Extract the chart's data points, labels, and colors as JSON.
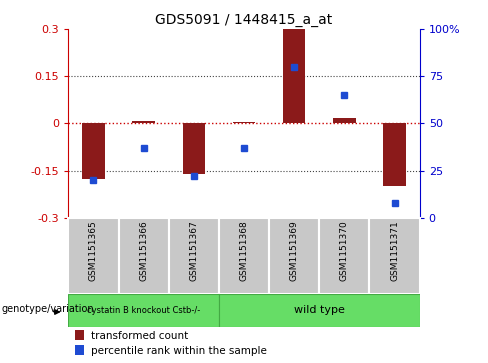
{
  "title": "GDS5091 / 1448415_a_at",
  "samples": [
    "GSM1151365",
    "GSM1151366",
    "GSM1151367",
    "GSM1151368",
    "GSM1151369",
    "GSM1151370",
    "GSM1151371"
  ],
  "transformed_count": [
    -0.178,
    0.008,
    -0.162,
    0.005,
    0.3,
    0.018,
    -0.2
  ],
  "percentile_rank": [
    20,
    37,
    22,
    37,
    80,
    65,
    8
  ],
  "ylim_left": [
    -0.3,
    0.3
  ],
  "ylim_right": [
    0,
    100
  ],
  "yticks_left": [
    -0.3,
    -0.15,
    0,
    0.15,
    0.3
  ],
  "yticks_right": [
    0,
    25,
    50,
    75,
    100
  ],
  "bar_color": "#8B1A1A",
  "dot_color": "#1E4BD2",
  "zero_line_color": "#CC0000",
  "dotted_line_color": "#444444",
  "group1_label": "cystatin B knockout Cstb-/-",
  "group2_label": "wild type",
  "group1_samples": 3,
  "group2_samples": 4,
  "group_color": "#66DD66",
  "group_edge_color": "#44AA44",
  "genotype_label": "genotype/variation",
  "legend_bar_label": "transformed count",
  "legend_dot_label": "percentile rank within the sample",
  "background_color": "#FFFFFF",
  "tick_color_left": "#CC0000",
  "tick_color_right": "#0000CC",
  "bar_width": 0.45,
  "sample_box_color": "#C8C8C8",
  "sample_box_edge": "#AAAAAA"
}
